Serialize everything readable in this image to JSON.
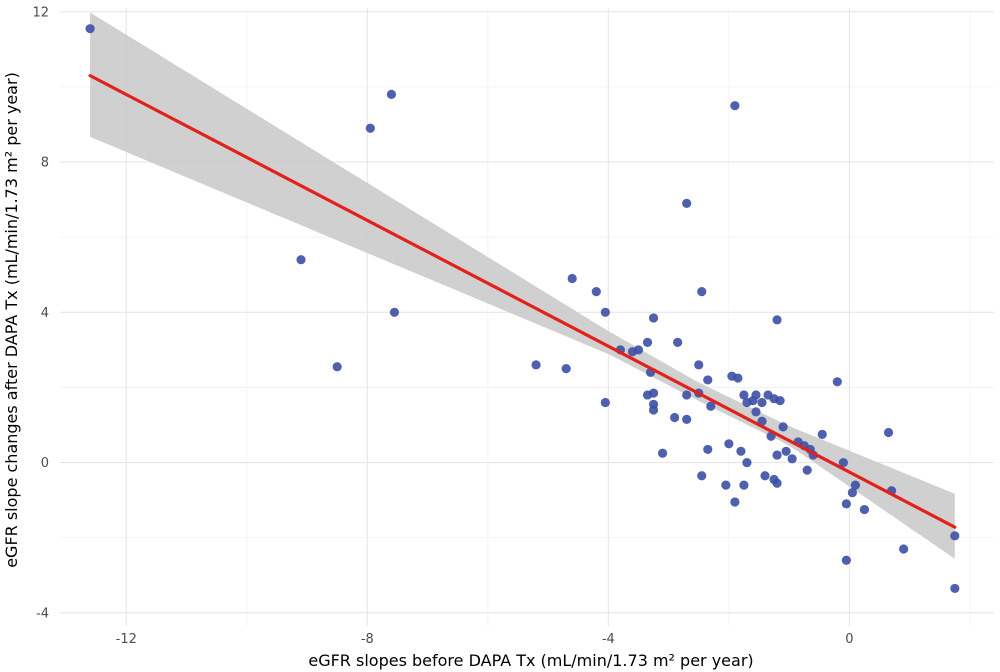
{
  "chart_data": {
    "type": "scatter",
    "xlabel": "eGFR slopes before DAPA Tx (mL/min/1.73 m² per year)",
    "ylabel": "eGFR slope changes after DAPA Tx (mL/min/1.73 m² per year)",
    "xlim": [
      -13.1,
      2.4
    ],
    "ylim": [
      -4.35,
      12.1
    ],
    "x_ticks": [
      -12,
      -8,
      -4,
      0
    ],
    "y_ticks": [
      -4,
      0,
      4,
      8,
      12
    ],
    "x_tick_labels": [
      "-12",
      "-8",
      "-4",
      "0"
    ],
    "y_tick_labels": [
      "-4",
      "0",
      "4",
      "8",
      "12"
    ],
    "grid": true,
    "colors": {
      "points": "#3b4fa5",
      "fit_line": "#e3211c",
      "confidence_band": "#c8c8c8",
      "gridlines": "#e6e6e6"
    },
    "points": [
      [
        -12.6,
        11.55
      ],
      [
        -7.6,
        9.8
      ],
      [
        -7.95,
        8.9
      ],
      [
        -1.9,
        9.5
      ],
      [
        -9.1,
        5.4
      ],
      [
        -7.55,
        4.0
      ],
      [
        -8.5,
        2.55
      ],
      [
        -5.2,
        2.6
      ],
      [
        -4.7,
        2.5
      ],
      [
        -4.6,
        4.9
      ],
      [
        -4.2,
        4.55
      ],
      [
        -4.05,
        4.0
      ],
      [
        -4.05,
        1.6
      ],
      [
        -3.8,
        3.0
      ],
      [
        -3.6,
        2.95
      ],
      [
        -3.5,
        3.0
      ],
      [
        -3.35,
        3.2
      ],
      [
        -3.25,
        3.85
      ],
      [
        -3.3,
        2.4
      ],
      [
        -3.35,
        1.8
      ],
      [
        -3.25,
        1.85
      ],
      [
        -3.25,
        1.4
      ],
      [
        -3.25,
        1.55
      ],
      [
        -3.1,
        0.25
      ],
      [
        -2.9,
        1.2
      ],
      [
        -2.85,
        3.2
      ],
      [
        -2.7,
        1.15
      ],
      [
        -2.7,
        1.8
      ],
      [
        -2.7,
        6.9
      ],
      [
        -2.45,
        4.55
      ],
      [
        -2.5,
        2.6
      ],
      [
        -2.5,
        1.85
      ],
      [
        -2.35,
        2.2
      ],
      [
        -2.3,
        1.5
      ],
      [
        -2.45,
        -0.35
      ],
      [
        -2.35,
        0.35
      ],
      [
        -2.05,
        -0.6
      ],
      [
        -2.0,
        0.5
      ],
      [
        -1.95,
        2.3
      ],
      [
        -1.85,
        2.25
      ],
      [
        -1.75,
        1.8
      ],
      [
        -1.7,
        1.6
      ],
      [
        -1.6,
        1.65
      ],
      [
        -1.55,
        1.8
      ],
      [
        -1.45,
        1.6
      ],
      [
        -1.35,
        1.8
      ],
      [
        -1.25,
        1.7
      ],
      [
        -1.15,
        1.65
      ],
      [
        -1.9,
        -1.05
      ],
      [
        -1.8,
        0.3
      ],
      [
        -1.75,
        -0.6
      ],
      [
        -1.7,
        0.0
      ],
      [
        -1.55,
        1.35
      ],
      [
        -1.45,
        1.1
      ],
      [
        -1.4,
        -0.35
      ],
      [
        -1.3,
        0.7
      ],
      [
        -1.25,
        -0.45
      ],
      [
        -1.2,
        -0.55
      ],
      [
        -1.2,
        0.2
      ],
      [
        -1.2,
        3.8
      ],
      [
        -1.1,
        0.95
      ],
      [
        -1.05,
        0.3
      ],
      [
        -0.95,
        0.1
      ],
      [
        -0.85,
        0.55
      ],
      [
        -0.75,
        0.45
      ],
      [
        -0.7,
        -0.2
      ],
      [
        -0.65,
        0.35
      ],
      [
        -0.6,
        0.2
      ],
      [
        -0.45,
        0.75
      ],
      [
        -0.2,
        2.15
      ],
      [
        -0.1,
        0.0
      ],
      [
        -0.05,
        -1.1
      ],
      [
        -0.05,
        -2.6
      ],
      [
        0.05,
        -0.8
      ],
      [
        0.1,
        -0.6
      ],
      [
        0.25,
        -1.25
      ],
      [
        0.65,
        0.8
      ],
      [
        0.7,
        -0.75
      ],
      [
        0.9,
        -2.3
      ],
      [
        1.75,
        -1.95
      ],
      [
        1.75,
        -3.35
      ]
    ],
    "regression": {
      "x_range": [
        -12.6,
        1.75
      ],
      "slope": -0.8376,
      "intercept": -0.2535,
      "ci_lower_at": [
        [
          -12.6,
          8.67
        ],
        [
          -4.0,
          2.89
        ],
        [
          -2.5,
          1.64
        ],
        [
          -1.0,
          0.46
        ],
        [
          1.75,
          -2.56
        ]
      ],
      "ci_upper_at": [
        [
          -12.6,
          11.98
        ],
        [
          -4.0,
          3.5
        ],
        [
          -2.5,
          2.13
        ],
        [
          -1.0,
          0.97
        ],
        [
          1.75,
          -0.83
        ]
      ]
    }
  }
}
